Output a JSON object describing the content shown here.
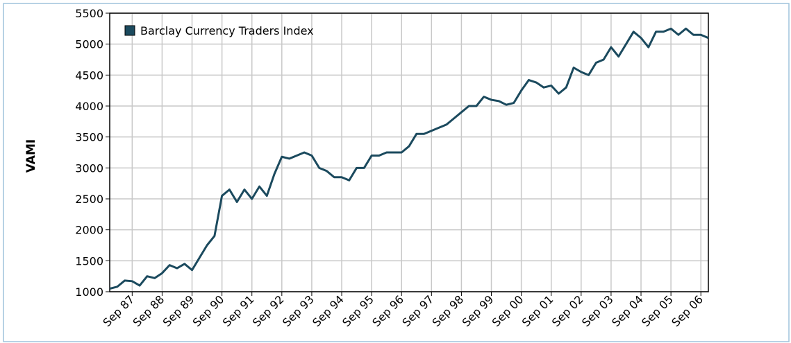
{
  "chart_data": {
    "type": "line",
    "y_label": "VAMI",
    "categories": [
      null,
      null,
      null,
      "Sep 87",
      null,
      null,
      null,
      "Sep 88",
      null,
      null,
      null,
      "Sep 89",
      null,
      null,
      null,
      "Sep 90",
      null,
      null,
      null,
      "Sep 91",
      null,
      null,
      null,
      "Sep 92",
      null,
      null,
      null,
      "Sep 93",
      null,
      null,
      null,
      "Sep 94",
      null,
      null,
      null,
      "Sep 95",
      null,
      null,
      null,
      "Sep 96",
      null,
      null,
      null,
      "Sep 97",
      null,
      null,
      null,
      "Sep 98",
      null,
      null,
      null,
      "Sep 99",
      null,
      null,
      null,
      "Sep 00",
      null,
      null,
      null,
      "Sep 01",
      null,
      null,
      null,
      "Sep 02",
      null,
      null,
      null,
      "Sep 03",
      null,
      null,
      null,
      "Sep 04",
      null,
      null,
      null,
      "Sep 05",
      null,
      null,
      null,
      "Sep 06",
      null
    ],
    "series": [
      {
        "name": "Barclay Currency Traders Index",
        "color": "#1b4a5e",
        "values": [
          1050,
          1080,
          1180,
          1170,
          1100,
          1250,
          1220,
          1300,
          1430,
          1380,
          1450,
          1350,
          1550,
          1750,
          1900,
          2550,
          2650,
          2450,
          2650,
          2500,
          2700,
          2550,
          2900,
          3180,
          3150,
          3200,
          3250,
          3200,
          3000,
          2950,
          2850,
          2850,
          2800,
          3000,
          3000,
          3200,
          3200,
          3250,
          3250,
          3250,
          3350,
          3550,
          3550,
          3600,
          3650,
          3700,
          3800,
          3900,
          4000,
          4000,
          4150,
          4100,
          4080,
          4020,
          4050,
          4250,
          4420,
          4380,
          4300,
          4330,
          4200,
          4300,
          4620,
          4550,
          4500,
          4700,
          4750,
          4950,
          4800,
          5000,
          5200,
          5100,
          4950,
          5200,
          5200,
          5250,
          5150,
          5250,
          5150,
          5150,
          5100
        ]
      }
    ],
    "ylim": [
      1000,
      5500
    ],
    "yticks": [
      1000,
      1500,
      2000,
      2500,
      3000,
      3500,
      4000,
      4500,
      5000,
      5500
    ],
    "grid": true,
    "legend": "top-left"
  }
}
